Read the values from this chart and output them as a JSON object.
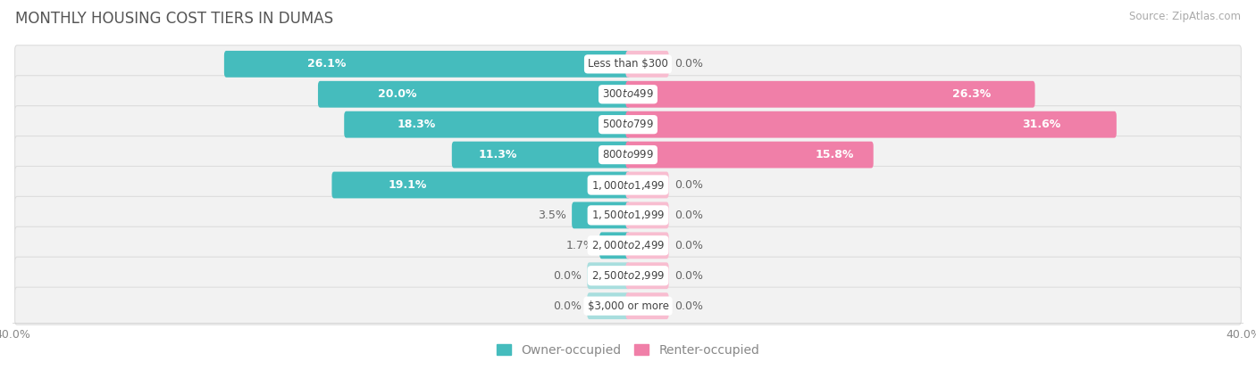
{
  "title": "MONTHLY HOUSING COST TIERS IN DUMAS",
  "source": "Source: ZipAtlas.com",
  "categories": [
    "Less than $300",
    "$300 to $499",
    "$500 to $799",
    "$800 to $999",
    "$1,000 to $1,499",
    "$1,500 to $1,999",
    "$2,000 to $2,499",
    "$2,500 to $2,999",
    "$3,000 or more"
  ],
  "owner_values": [
    26.1,
    20.0,
    18.3,
    11.3,
    19.1,
    3.5,
    1.7,
    0.0,
    0.0
  ],
  "renter_values": [
    0.0,
    26.3,
    31.6,
    15.8,
    0.0,
    0.0,
    0.0,
    0.0,
    0.0
  ],
  "owner_color": "#45BCBD",
  "renter_color": "#F07FA8",
  "owner_color_light": "#A8DEDE",
  "renter_color_light": "#F8BDD0",
  "row_bg_color": "#F2F2F2",
  "row_border_color": "#DDDDDD",
  "text_dark": "#666666",
  "text_white": "#FFFFFF",
  "axis_max": 40.0,
  "bar_height": 0.58,
  "zero_bar_width": 2.5,
  "title_fontsize": 12,
  "source_fontsize": 8.5,
  "value_fontsize": 9,
  "legend_fontsize": 10,
  "axis_label_fontsize": 9,
  "category_fontsize": 8.5
}
